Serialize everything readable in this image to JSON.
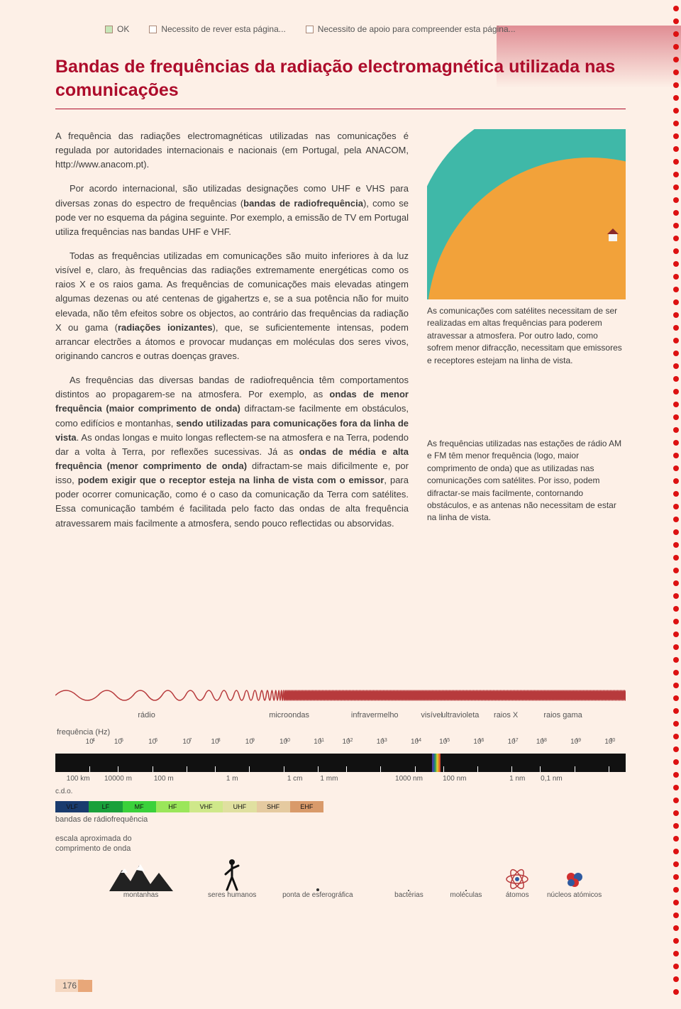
{
  "header": {
    "ok": "OK",
    "revise": "Necessito de rever esta página...",
    "help": "Necessito de apoio para compreender esta página..."
  },
  "title": "Bandas de frequências da radiação electromagnética utilizada nas comunicações",
  "body": {
    "p1": "A frequência das radiações electromagnéticas utilizadas nas comunicações é regulada por autoridades internacionais e nacionais (em Portugal, pela ANACOM, http://www.anacom.pt).",
    "p2_pre": "Por acordo internacional, são utilizadas designações como UHF e VHS para diversas zonas do espectro de frequências (",
    "p2_bold": "bandas de radiofrequência",
    "p2_post": "), como se pode ver no esquema da página seguinte. Por exemplo, a emissão de TV em Portugal utiliza frequências nas bandas UHF e VHF.",
    "p3_pre": "Todas as frequências utilizadas em comunicações são muito inferiores à da luz visível e, claro, às frequências das radiações extremamente energéticas como os raios X e os raios gama. As frequências de comunicações mais elevadas atingem algumas dezenas ou até centenas de gigahertzs e, se a sua potência não for muito elevada, não têm efeitos sobre os objectos, ao contrário das frequências da radiação X ou gama (",
    "p3_bold": "radiações ionizantes",
    "p3_post": "), que, se suficientemente intensas, podem arrancar electrões a átomos e provocar mudanças em moléculas dos seres vivos, originando cancros e outras doenças graves.",
    "p4_pre": "As frequências das diversas bandas de radiofrequência têm comportamentos distintos ao propagarem-se na atmosfera. Por exemplo, as ",
    "p4_b1": "ondas de menor frequência (maior comprimento de onda)",
    "p4_mid1": " difractam-se facilmente em obstáculos, como edifícios e montanhas, ",
    "p4_b2": "sendo utilizadas para comunicações fora da linha de vista",
    "p4_mid2": ". As ondas longas e muito longas reflectem-se na atmosfera e na Terra, podendo dar a volta à Terra, por reflexões sucessivas. Já as ",
    "p4_b3": "ondas de média e alta frequência (menor comprimento de onda)",
    "p4_mid3": " difractam-se mais dificilmente e, por isso, ",
    "p4_b4": "podem exigir que o receptor esteja na linha de vista com o emissor",
    "p4_post": ", para poder ocorrer comunicação, como é o caso da comunicação da Terra com satélites. Essa comunicação também é facilitada pelo facto das ondas de alta frequência atravessarem mais facilmente a atmosfera, sendo pouco reflectidas ou absorvidas."
  },
  "side": {
    "cap1": "As comunicações com satélites necessitam de ser realizadas em altas frequências para poderem atravessar a atmosfera. Por outro lado, como sofrem menor difracção, necessitam que emissores e receptores estejam na linha de vista.",
    "cap2": "As frequências utilizadas nas estações de rádio AM e FM têm menor frequência (logo, maior comprimento de onda) que as utilizadas nas comunicações com satélites. Por isso, podem difractar-se mais facilmente, contornando obstáculos, e as antenas não necessitam de estar na linha de vista."
  },
  "spectrum": {
    "wave_color": "#b73a3c",
    "bands": [
      {
        "label": "rádio",
        "pos_pct": 16
      },
      {
        "label": "microondas",
        "pos_pct": 41
      },
      {
        "label": "infravermelho",
        "pos_pct": 56
      },
      {
        "label": "visível",
        "pos_pct": 66
      },
      {
        "label": "ultravioleta",
        "pos_pct": 71
      },
      {
        "label": "raios X",
        "pos_pct": 79
      },
      {
        "label": "raios gama",
        "pos_pct": 89
      }
    ],
    "freq_label": "frequência (Hz)",
    "freq_ticks": [
      {
        "base": "10",
        "exp": "4",
        "pos_pct": 6
      },
      {
        "base": "10",
        "exp": "5",
        "pos_pct": 11
      },
      {
        "base": "10",
        "exp": "6",
        "pos_pct": 17
      },
      {
        "base": "10",
        "exp": "7",
        "pos_pct": 23
      },
      {
        "base": "10",
        "exp": "8",
        "pos_pct": 28
      },
      {
        "base": "10",
        "exp": "9",
        "pos_pct": 34
      },
      {
        "base": "10",
        "exp": "10",
        "pos_pct": 40
      },
      {
        "base": "10",
        "exp": "11",
        "pos_pct": 46
      },
      {
        "base": "10",
        "exp": "12",
        "pos_pct": 51
      },
      {
        "base": "10",
        "exp": "13",
        "pos_pct": 57
      },
      {
        "base": "10",
        "exp": "14",
        "pos_pct": 63
      },
      {
        "base": "10",
        "exp": "15",
        "pos_pct": 68
      },
      {
        "base": "10",
        "exp": "16",
        "pos_pct": 74
      },
      {
        "base": "10",
        "exp": "17",
        "pos_pct": 80
      },
      {
        "base": "10",
        "exp": "18",
        "pos_pct": 85
      },
      {
        "base": "10",
        "exp": "19",
        "pos_pct": 91
      },
      {
        "base": "10",
        "exp": "20",
        "pos_pct": 97
      }
    ],
    "visible_pos_pct": 66,
    "bar_color": "#111111",
    "wavelength_ticks": [
      {
        "label": "100 km",
        "pos_pct": 4
      },
      {
        "label": "10000 m",
        "pos_pct": 11
      },
      {
        "label": "100 m",
        "pos_pct": 19
      },
      {
        "label": "1 m",
        "pos_pct": 31
      },
      {
        "label": "1 cm",
        "pos_pct": 42
      },
      {
        "label": "1 mm",
        "pos_pct": 48
      },
      {
        "label": "1000 nm",
        "pos_pct": 62
      },
      {
        "label": "100 nm",
        "pos_pct": 70
      },
      {
        "label": "1 nm",
        "pos_pct": 81
      },
      {
        "label": "0,1 nm",
        "pos_pct": 87
      }
    ],
    "cdo_label": "c.d.o.",
    "rf_bands": [
      {
        "label": "VLF",
        "left_pct": 0,
        "width_pct": 12.5,
        "color": "#1a3b6e"
      },
      {
        "label": "LF",
        "left_pct": 12.5,
        "width_pct": 12.5,
        "color": "#1aa03b"
      },
      {
        "label": "MF",
        "left_pct": 25,
        "width_pct": 12.5,
        "color": "#3bd13b"
      },
      {
        "label": "HF",
        "left_pct": 37.5,
        "width_pct": 12.5,
        "color": "#9be65a"
      },
      {
        "label": "VHF",
        "left_pct": 50,
        "width_pct": 12.5,
        "color": "#cfe88a"
      },
      {
        "label": "UHF",
        "left_pct": 62.5,
        "width_pct": 12.5,
        "color": "#e0e0a0"
      },
      {
        "label": "SHF",
        "left_pct": 75,
        "width_pct": 12.5,
        "color": "#e5caa0"
      },
      {
        "label": "EHF",
        "left_pct": 87.5,
        "width_pct": 12.5,
        "color": "#d99a6a"
      }
    ],
    "rf_label": "bandas de rádiofrequência",
    "scale_label": "escala aproximada do\ncomprimento de onda",
    "scale_items": [
      {
        "label": "montanhas",
        "pos_pct": 15,
        "icon": "mountain"
      },
      {
        "label": "seres humanos",
        "pos_pct": 31,
        "icon": "human"
      },
      {
        "label": "ponta de esferográfica",
        "pos_pct": 46,
        "icon": "dot"
      },
      {
        "label": "bactérias",
        "pos_pct": 62,
        "icon": "tiny"
      },
      {
        "label": "moléculas",
        "pos_pct": 72,
        "icon": "tiny"
      },
      {
        "label": "átomos",
        "pos_pct": 81,
        "icon": "atom"
      },
      {
        "label": "núcleos atómicos",
        "pos_pct": 91,
        "icon": "nucleus"
      }
    ]
  },
  "page_number": "176"
}
